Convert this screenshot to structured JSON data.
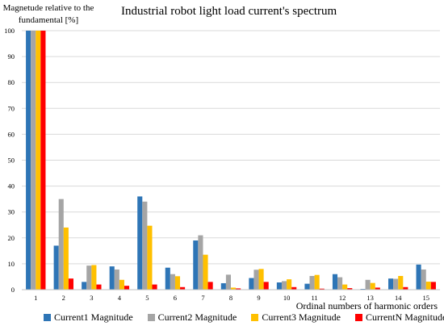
{
  "chart_data": {
    "type": "bar",
    "title": "Industrial robot light load current's spectrum",
    "ylabel": "Magnetude relative to the fundamental [%]",
    "xlabel": "Ordinal numbers of harmonic orders",
    "ylim": [
      0,
      100
    ],
    "yticks": [
      "0",
      "10",
      "20",
      "30",
      "40",
      "50",
      "60",
      "70",
      "80",
      "90",
      "100"
    ],
    "grid": true,
    "legend_position": "bottom",
    "categories": [
      "1",
      "2",
      "3",
      "4",
      "5",
      "6",
      "7",
      "8",
      "9",
      "10",
      "11",
      "12",
      "13",
      "14",
      "15"
    ],
    "series": [
      {
        "name": "Current1 Magnitude",
        "color": "#2E75B6",
        "values": [
          100,
          17,
          3,
          9,
          36,
          8.5,
          19,
          2.5,
          4.5,
          2.8,
          2.3,
          6,
          0.3,
          4.3,
          9.7
        ]
      },
      {
        "name": "Current2 Magnitude",
        "color": "#A5A5A5",
        "values": [
          100,
          35,
          9.3,
          7.8,
          34,
          6,
          21,
          5.8,
          7.7,
          3.3,
          5.3,
          4.8,
          3.8,
          4.2,
          7.8
        ]
      },
      {
        "name": "Current3 Magnitude",
        "color": "#FFC000",
        "values": [
          100,
          24,
          9.5,
          3.8,
          24.7,
          5.2,
          13.5,
          0.8,
          8,
          4,
          5.7,
          2,
          2.6,
          5.3,
          3.1
        ]
      },
      {
        "name": "CurrentN Magnitude",
        "color": "#FF0000",
        "values": [
          100,
          4.3,
          2,
          1.5,
          2,
          1,
          3,
          0.5,
          3,
          1,
          0.4,
          0.6,
          0.8,
          1,
          3
        ]
      }
    ]
  }
}
